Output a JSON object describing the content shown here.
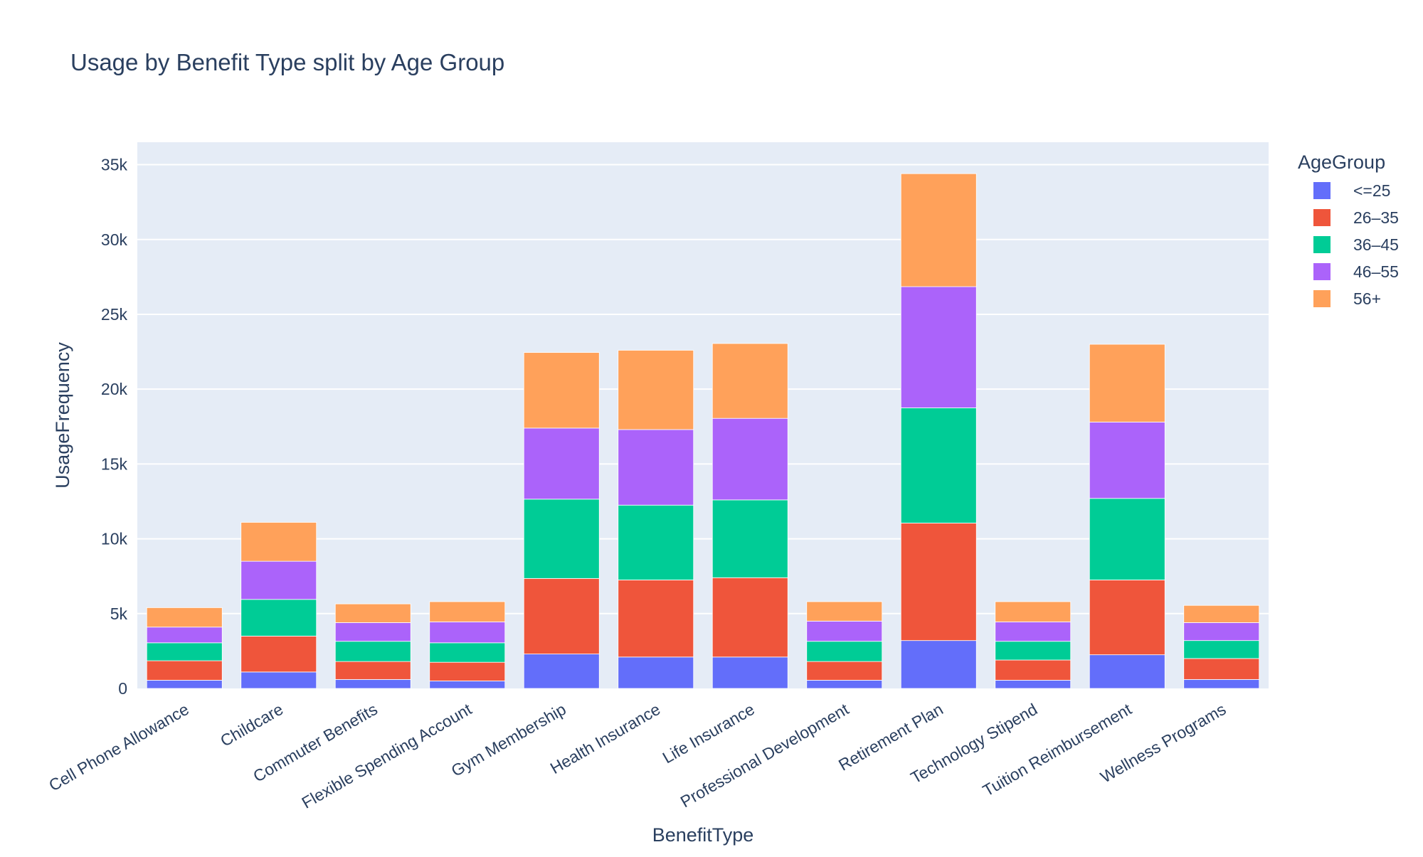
{
  "chart_data": {
    "type": "bar",
    "stacked": true,
    "title": "Usage by Benefit Type split by Age Group",
    "xlabel": "BenefitType",
    "ylabel": "UsageFrequency",
    "ylim": [
      0,
      36500
    ],
    "yticks": [
      0,
      5000,
      10000,
      15000,
      20000,
      25000,
      30000,
      35000
    ],
    "ytick_labels": [
      "0",
      "5k",
      "10k",
      "15k",
      "20k",
      "25k",
      "30k",
      "35k"
    ],
    "grid": true,
    "legend": {
      "title": "AgeGroup",
      "placement": "right"
    },
    "categories": [
      "Cell Phone Allowance",
      "Childcare",
      "Commuter Benefits",
      "Flexible Spending Account",
      "Gym Membership",
      "Health Insurance",
      "Life Insurance",
      "Professional Development",
      "Retirement Plan",
      "Technology Stipend",
      "Tuition Reimbursement",
      "Wellness Programs"
    ],
    "series": [
      {
        "name": "<=25",
        "color": "#636efa",
        "values": [
          550,
          1100,
          600,
          500,
          2300,
          2100,
          2100,
          550,
          3200,
          550,
          2250,
          600
        ]
      },
      {
        "name": "26–35",
        "color": "#ef553b",
        "values": [
          1300,
          2400,
          1200,
          1250,
          5050,
          5150,
          5300,
          1250,
          7850,
          1350,
          5000,
          1400
        ]
      },
      {
        "name": "36–45",
        "color": "#00cc96",
        "values": [
          1200,
          2450,
          1350,
          1300,
          5300,
          5000,
          5200,
          1350,
          7700,
          1250,
          5450,
          1200
        ]
      },
      {
        "name": "46–55",
        "color": "#ab63fa",
        "values": [
          1050,
          2550,
          1250,
          1400,
          4750,
          5050,
          5450,
          1350,
          8100,
          1300,
          5100,
          1200
        ]
      },
      {
        "name": "56+",
        "color": "#ffa15a",
        "values": [
          1300,
          2600,
          1250,
          1350,
          5050,
          5300,
          5000,
          1300,
          7550,
          1350,
          5200,
          1150
        ]
      }
    ]
  }
}
